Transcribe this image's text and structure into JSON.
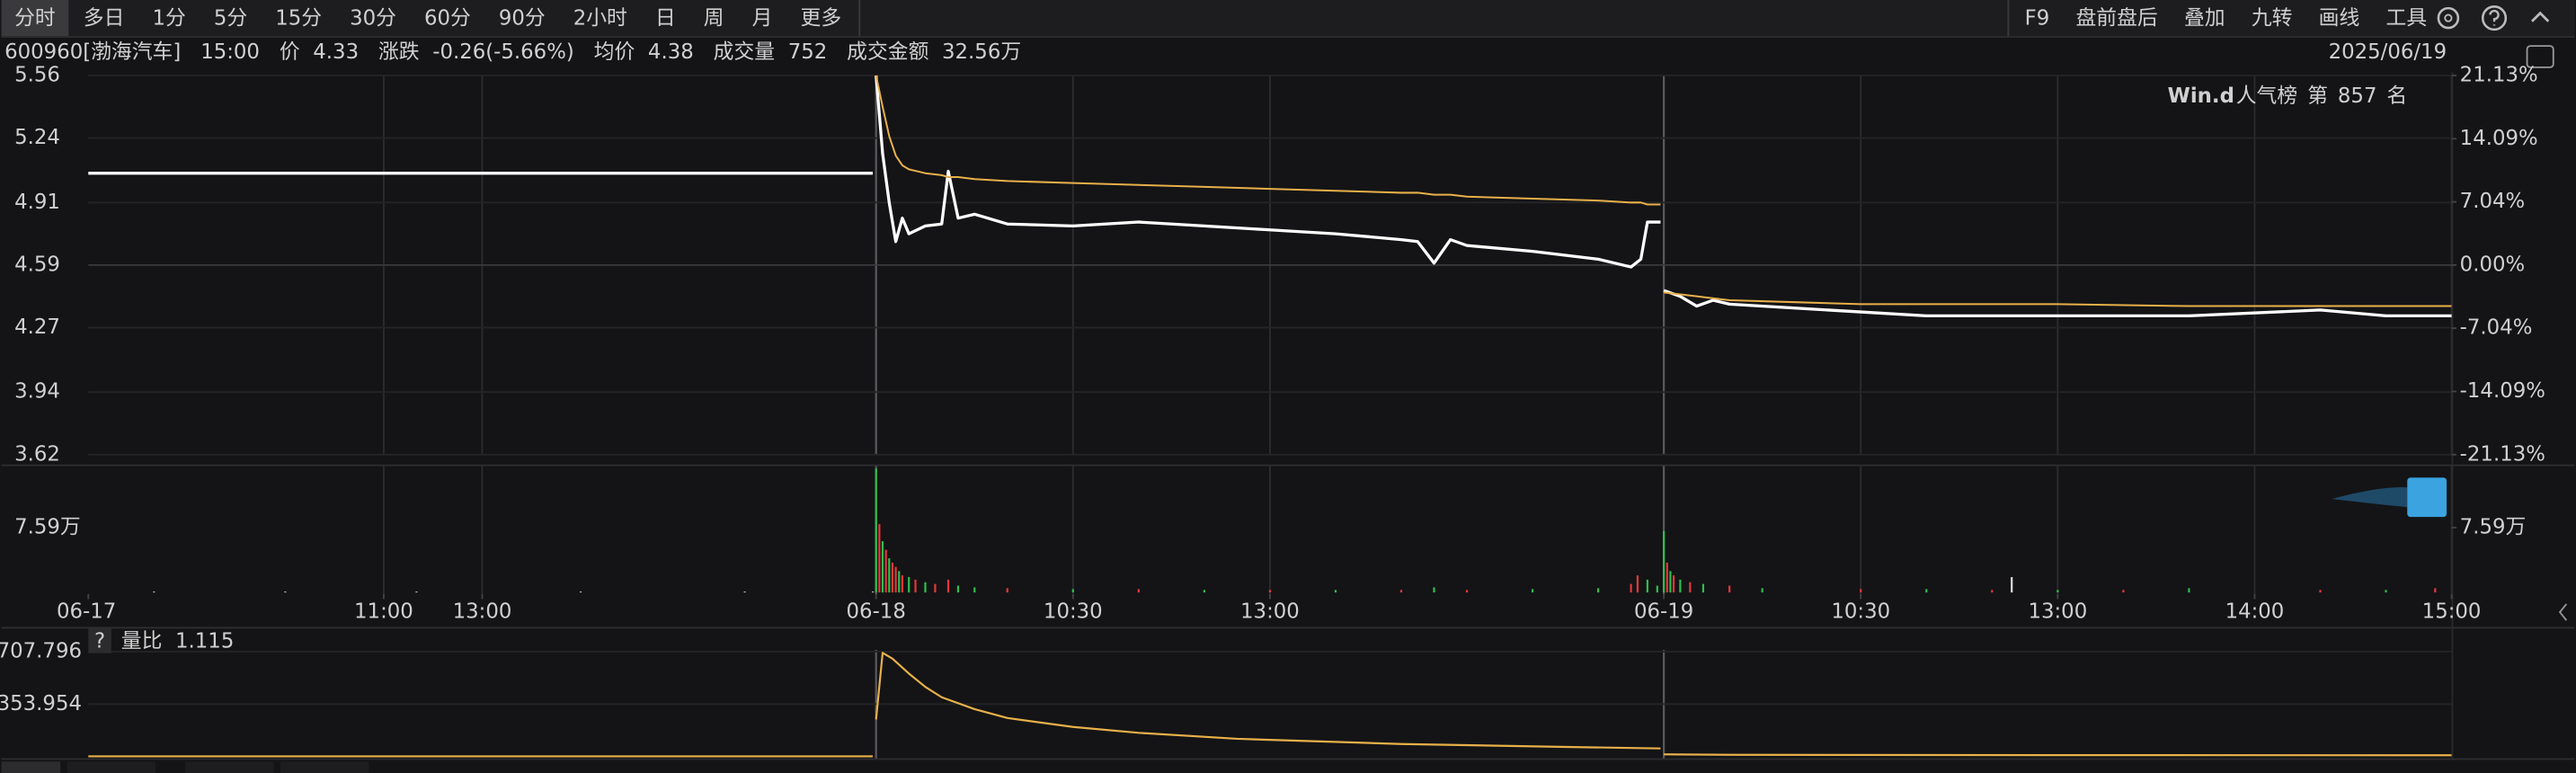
{
  "toolbar": {
    "periods": [
      "分时",
      "多日",
      "1分",
      "5分",
      "15分",
      "30分",
      "60分",
      "90分",
      "2小时",
      "日",
      "周",
      "月",
      "更多"
    ],
    "tools": [
      "F9",
      "盘前盘后",
      "叠加",
      "九转",
      "画线",
      "工具"
    ]
  },
  "header": {
    "code": "600960[渤海汽车]",
    "time": "15:00",
    "price_label": "价",
    "price": 4.33,
    "change_label": "涨跌",
    "change": "-0.26(-5.66%)",
    "avg_label": "均价",
    "avg": 4.38,
    "volume_label": "成交量",
    "volume": 752,
    "amount_label": "成交金额",
    "amount": "32.56万",
    "date": "2025/06/19"
  },
  "chart_data": [
    {
      "type": "line",
      "badge": {
        "brand": "Win.d",
        "label": "人气榜",
        "rank_prefix": "第",
        "rank": 857,
        "rank_suffix": "名"
      },
      "x": [
        0,
        239,
        239.5,
        240,
        242,
        244,
        246,
        248,
        250,
        255,
        260,
        262,
        265,
        270,
        280,
        300,
        320,
        340,
        360,
        380,
        400,
        405,
        410,
        415,
        420,
        440,
        460,
        470,
        473,
        475,
        479,
        479.5,
        480,
        485,
        490,
        495,
        500,
        520,
        540,
        560,
        600,
        640,
        680,
        700,
        710,
        720
      ],
      "series": [
        {
          "color": "#ffffff",
          "values": [
            5.06,
            5.06,
            null,
            5.56,
            5.16,
            4.91,
            4.71,
            4.83,
            4.75,
            4.79,
            4.8,
            5.07,
            4.83,
            4.85,
            4.8,
            4.79,
            4.81,
            4.79,
            4.77,
            4.75,
            4.72,
            4.71,
            4.6,
            4.72,
            4.69,
            4.66,
            4.62,
            4.58,
            4.62,
            4.81,
            4.81,
            null,
            4.46,
            4.43,
            4.38,
            4.41,
            4.39,
            4.37,
            4.35,
            4.33,
            4.33,
            4.33,
            4.36,
            4.33,
            4.33,
            4.33
          ]
        },
        {
          "color": "#e8b04a",
          "values": [
            null,
            null,
            null,
            5.56,
            5.4,
            5.25,
            5.15,
            5.1,
            5.08,
            5.06,
            5.05,
            5.04,
            5.04,
            5.03,
            5.02,
            5.01,
            5.0,
            4.99,
            4.98,
            4.97,
            4.96,
            4.96,
            4.95,
            4.95,
            4.94,
            4.93,
            4.92,
            4.91,
            4.91,
            4.9,
            4.9,
            null,
            4.45,
            4.44,
            4.43,
            4.42,
            4.41,
            4.4,
            4.39,
            4.39,
            4.39,
            4.38,
            4.38,
            4.38,
            4.38,
            4.38
          ]
        }
      ],
      "xlim": [
        0,
        720
      ],
      "xticks": [
        {
          "value": 0,
          "label": "06-17"
        },
        {
          "value": 90,
          "label": "11:00"
        },
        {
          "value": 120,
          "label": "13:00"
        },
        {
          "value": 240,
          "label": "06-18"
        },
        {
          "value": 300,
          "label": "10:30"
        },
        {
          "value": 360,
          "label": "13:00"
        },
        {
          "value": 480,
          "label": "06-19"
        },
        {
          "value": 540,
          "label": "10:30"
        },
        {
          "value": 600,
          "label": "13:00"
        },
        {
          "value": 660,
          "label": "14:00"
        },
        {
          "value": 720,
          "label": "15:00"
        }
      ],
      "ylim": [
        3.62,
        5.56
      ],
      "yticks": [
        5.56,
        5.24,
        4.91,
        4.59,
        4.27,
        3.94,
        3.62
      ],
      "y2lim": [
        -21.13,
        21.13
      ],
      "y2ticks": [
        {
          "value": 21.13,
          "label": "21.13%"
        },
        {
          "value": 14.09,
          "label": "14.09%"
        },
        {
          "value": 7.04,
          "label": "7.04%"
        },
        {
          "value": 0,
          "label": "0.00%"
        },
        {
          "value": -7.04,
          "label": "-7.04%"
        },
        {
          "value": -14.09,
          "label": "-14.09%"
        },
        {
          "value": -21.13,
          "label": "-21.13%"
        }
      ],
      "grid": true
    },
    {
      "type": "bar",
      "x": [
        20,
        60,
        100,
        150,
        200,
        239,
        240,
        241,
        242,
        243,
        244,
        245,
        246,
        247,
        248,
        250,
        252,
        255,
        258,
        262,
        265,
        270,
        280,
        300,
        320,
        340,
        360,
        380,
        400,
        410,
        420,
        440,
        460,
        470,
        472,
        475,
        478,
        480,
        481,
        482,
        483,
        485,
        488,
        492,
        500,
        510,
        540,
        560,
        580,
        586,
        600,
        620,
        640,
        680,
        700,
        715
      ],
      "values": [
        0.1,
        0.1,
        0.1,
        0.1,
        0.1,
        0.1,
        14.5,
        8,
        6,
        5,
        4,
        3.5,
        3,
        2.5,
        2,
        1.8,
        1.5,
        1.2,
        1,
        1.5,
        0.8,
        0.6,
        0.5,
        0.4,
        0.4,
        0.3,
        0.3,
        0.3,
        0.3,
        0.6,
        0.3,
        0.4,
        0.5,
        1,
        2,
        1.5,
        0.8,
        7.2,
        3.5,
        2.5,
        2,
        1.5,
        1.2,
        1,
        0.8,
        0.5,
        0.4,
        0.4,
        0.3,
        1.8,
        0.3,
        0.3,
        0.5,
        0.3,
        0.3,
        0.5
      ],
      "colors": [
        "#dddddd",
        "#dddddd",
        "#dddddd",
        "#dddddd",
        "#dddddd",
        "#dddddd",
        "#2fbf4f",
        "#e5383b",
        "#2fbf4f",
        "#e5383b",
        "#2fbf4f",
        "#e5383b",
        "#e5383b",
        "#2fbf4f",
        "#e5383b",
        "#2fbf4f",
        "#e5383b",
        "#2fbf4f",
        "#e5383b",
        "#e5383b",
        "#2fbf4f",
        "#2fbf4f",
        "#e5383b",
        "#2fbf4f",
        "#e5383b",
        "#2fbf4f",
        "#e5383b",
        "#2fbf4f",
        "#e5383b",
        "#2fbf4f",
        "#e5383b",
        "#2fbf4f",
        "#2fbf4f",
        "#e5383b",
        "#e5383b",
        "#2fbf4f",
        "#2fbf4f",
        "#2fbf4f",
        "#e5383b",
        "#2fbf4f",
        "#e5383b",
        "#2fbf4f",
        "#e5383b",
        "#2fbf4f",
        "#e5383b",
        "#2fbf4f",
        "#e5383b",
        "#2fbf4f",
        "#e5383b",
        "#dddddd",
        "#2fbf4f",
        "#e5383b",
        "#2fbf4f",
        "#e5383b",
        "#2fbf4f",
        "#e5383b"
      ],
      "xlim": [
        0,
        720
      ],
      "ylim": [
        0,
        14.6
      ],
      "yticks": [
        {
          "value": 7.59,
          "label": "7.59万"
        }
      ]
    },
    {
      "type": "line",
      "help": "?",
      "current": 1.115,
      "x": [
        0,
        239,
        239.5,
        240,
        242,
        245,
        250,
        255,
        260,
        270,
        280,
        300,
        320,
        350,
        400,
        450,
        479,
        479.5,
        480,
        500,
        600,
        720
      ],
      "series": [
        {
          "name": "量比",
          "color": "#e8b04a",
          "values": [
            2,
            2,
            null,
            250,
            700,
            660,
            560,
            470,
            400,
            320,
            260,
            200,
            160,
            120,
            85,
            65,
            55,
            null,
            15,
            12,
            10,
            9
          ]
        }
      ],
      "xlim": [
        0,
        720
      ],
      "ylim": [
        0,
        830
      ],
      "yticks": [
        707.796,
        353.954
      ]
    }
  ]
}
